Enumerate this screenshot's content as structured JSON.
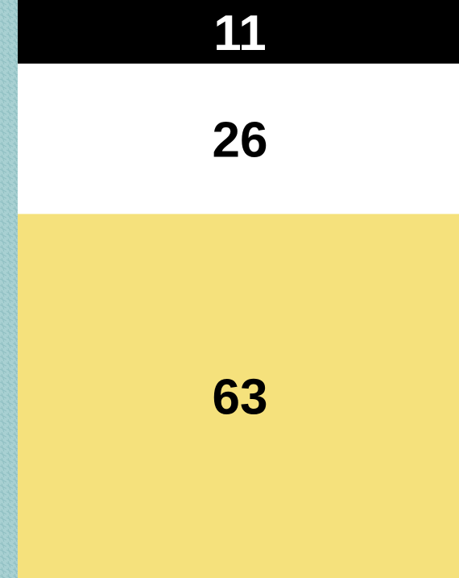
{
  "chart_data": {
    "type": "stacked_bar",
    "stacked": true,
    "ylim": [
      0,
      100
    ],
    "series": [
      {
        "color": "#f5e17c",
        "label_color": "#000000",
        "values": [
          63
        ]
      },
      {
        "color": "#ffffff",
        "label_color": "#000000",
        "values": [
          26
        ]
      },
      {
        "color": "#000000",
        "label_color": "#ffffff",
        "values": [
          11
        ]
      }
    ]
  }
}
